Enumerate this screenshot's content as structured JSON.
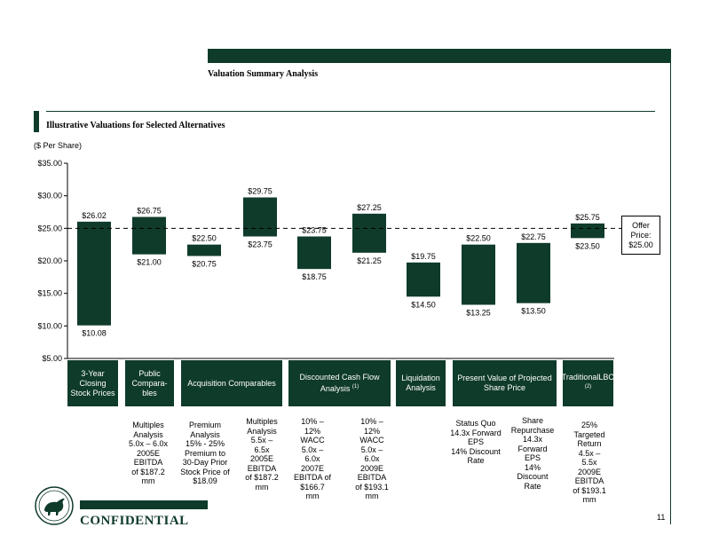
{
  "header": {
    "title": "Valuation Summary Analysis"
  },
  "section": {
    "title": "Illustrative Valuations for Selected Alternatives",
    "unit": "($ Per Share)"
  },
  "offer": {
    "value": 25.0,
    "label": "Offer Price: $25.00"
  },
  "chart_data": {
    "type": "bar",
    "subtype": "floating-range",
    "ylim": [
      5,
      35
    ],
    "yticks": [
      "$5.00",
      "$10.00",
      "$15.00",
      "$20.00",
      "$25.00",
      "$30.00",
      "$35.00"
    ],
    "reference_line": 25.0,
    "grid": false,
    "bars": [
      {
        "low": 10.08,
        "high": 26.02,
        "low_label": "$10.08",
        "high_label": "$26.02"
      },
      {
        "low": 21.0,
        "high": 26.75,
        "low_label": "$21.00",
        "high_label": "$26.75"
      },
      {
        "low": 20.75,
        "high": 22.5,
        "low_label": "$20.75",
        "high_label": "$22.50"
      },
      {
        "low": 23.75,
        "high": 29.75,
        "low_label": "$23.75",
        "high_label": "$29.75"
      },
      {
        "low": 18.75,
        "high": 23.75,
        "low_label": "$18.75",
        "high_label": "$23.75"
      },
      {
        "low": 21.25,
        "high": 27.25,
        "low_label": "$21.25",
        "high_label": "$27.25"
      },
      {
        "low": 14.5,
        "high": 19.75,
        "low_label": "$14.50",
        "high_label": "$19.75"
      },
      {
        "low": 13.25,
        "high": 22.5,
        "low_label": "$13.25",
        "high_label": "$22.50"
      },
      {
        "low": 13.5,
        "high": 22.75,
        "low_label": "$13.50",
        "high_label": "$22.75"
      },
      {
        "low": 23.5,
        "high": 25.75,
        "low_label": "$23.50",
        "high_label": "$25.75"
      }
    ],
    "categories": [
      "3-Year Closing Stock Prices",
      "Public Compara-bles",
      "Acquisition Comparables",
      "Discounted Cash Flow Analysis",
      "Liquidation Analysis",
      "Present Value of Projected Share Price",
      "TraditionalLBO"
    ],
    "category_footnotes": [
      "",
      "",
      "",
      "(1)",
      "",
      "",
      "(2)"
    ],
    "notes": [
      "",
      "Multiples\nAnalysis\n5.0x – 6.0x\n2005E\nEBITDA\nof $187.2\nmm",
      "Premium\nAnalysis\n15% - 25%\nPremium to\n30-Day Prior\nStock Price of\n$18.09",
      "Multiples\nAnalysis\n5.5x –\n6.5x\n2005E\nEBITDA\nof $187.2\nmm",
      "10% –\n12%\nWACC\n5.0x –\n6.0x\n2007E\nEBITDA of\n$166.7\nmm",
      "10% –\n12%\nWACC\n5.0x –\n6.0x\n2009E\nEBITDA\nof $193.1\nmm",
      "",
      "Status Quo\n14.3x Forward\nEPS\n14% Discount\nRate",
      "Share\nRepurchase\n14.3x\nForward\nEPS\n14%\nDiscount\nRate",
      "25%\nTargeted\nReturn\n4.5x –\n5.5x\n2009E\nEBITDA\nof $193.1\nmm"
    ]
  },
  "footer": {
    "confidential": "CONFIDENTIAL",
    "page": "11"
  }
}
